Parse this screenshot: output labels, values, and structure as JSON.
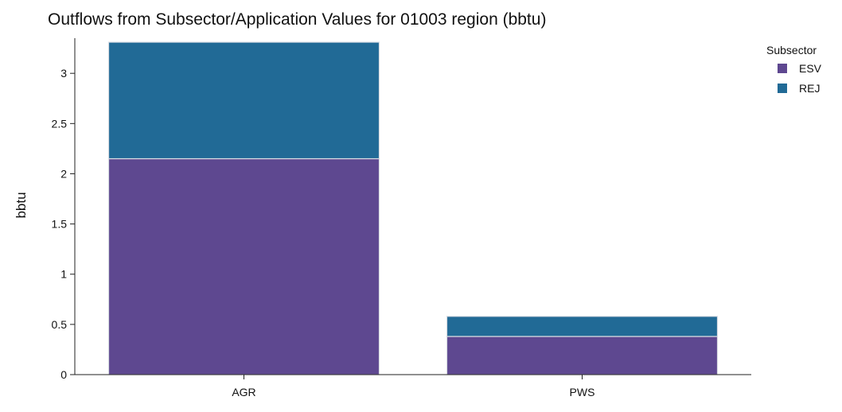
{
  "chart_data": {
    "type": "bar",
    "stacked": true,
    "title": "Outflows from Subsector/Application Values for 01003 region (bbtu)",
    "xlabel": "",
    "ylabel": "bbtu",
    "categories": [
      "AGR",
      "PWS"
    ],
    "series": [
      {
        "name": "ESV",
        "color": "#5e4890",
        "values": [
          2.15,
          0.38
        ]
      },
      {
        "name": "REJ",
        "color": "#216a96",
        "values": [
          1.16,
          0.2
        ]
      }
    ],
    "ylim": [
      0,
      3.35
    ],
    "yticks": [
      0,
      0.5,
      1,
      1.5,
      2,
      2.5,
      3
    ],
    "ytick_labels": [
      "0",
      "0.5",
      "1",
      "1.5",
      "2",
      "2.5",
      "3"
    ],
    "grid": false,
    "legend": {
      "title": "Subsector",
      "position": "top-right"
    }
  }
}
